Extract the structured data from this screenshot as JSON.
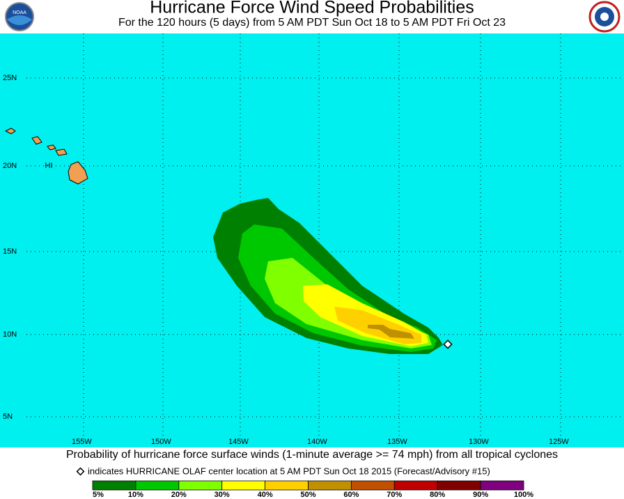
{
  "header": {
    "title": "Hurricane Force Wind Speed Probabilities",
    "subtitle": "For the 120 hours (5 days) from 5 AM PDT Sun Oct 18 to 5 AM PDT Fri Oct 23"
  },
  "map": {
    "lat_labels": [
      "25N",
      "20N",
      "15N",
      "10N",
      "5N"
    ],
    "lon_labels": [
      "155W",
      "150W",
      "145W",
      "140W",
      "135W",
      "130W",
      "125W"
    ],
    "island_label": "HI"
  },
  "footer": {
    "caption": "Probability of hurricane force surface winds (1-minute average >= 74 mph) from all tropical cyclones",
    "note": "indicates HURRICANE OLAF center location at 5 AM PDT Sun Oct 18 2015 (Forecast/Advisory #15)"
  },
  "legend": {
    "labels": [
      "5%",
      "10%",
      "20%",
      "30%",
      "40%",
      "50%",
      "60%",
      "70%",
      "80%",
      "90%",
      "100%"
    ],
    "colors": [
      "#008000",
      "#00c800",
      "#80ff00",
      "#ffff00",
      "#ffd000",
      "#c09000",
      "#c05000",
      "#c00000",
      "#800000",
      "#800080"
    ]
  }
}
